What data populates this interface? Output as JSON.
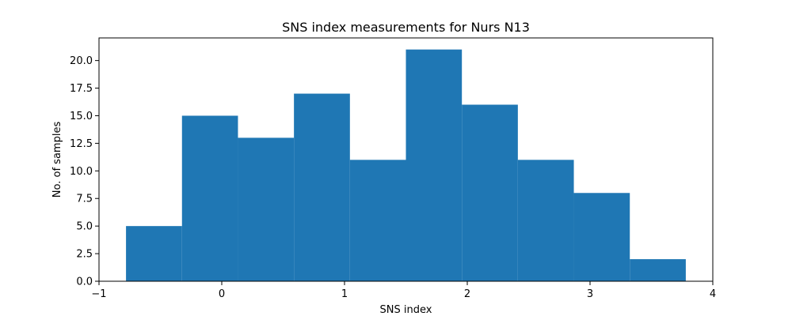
{
  "chart_data": {
    "type": "bar",
    "title": "SNS index measurements for Nurs N13",
    "xlabel": "SNS index",
    "ylabel": "No. of samples",
    "bin_edges": [
      -0.78,
      -0.324,
      0.132,
      0.588,
      1.044,
      1.5,
      1.956,
      2.412,
      2.868,
      3.324,
      3.78
    ],
    "values": [
      5,
      15,
      13,
      17,
      11,
      21,
      16,
      11,
      8,
      2
    ],
    "xlim": [
      -1.0,
      4.0
    ],
    "ylim": [
      0,
      22.05
    ],
    "xticks": [
      -1,
      0,
      1,
      2,
      3,
      4
    ],
    "xtick_labels": [
      "−1",
      "0",
      "1",
      "2",
      "3",
      "4"
    ],
    "yticks": [
      0,
      2.5,
      5,
      7.5,
      10,
      12.5,
      15,
      17.5,
      20
    ],
    "ytick_labels": [
      "0.0",
      "2.5",
      "5.0",
      "7.5",
      "10.0",
      "12.5",
      "15.0",
      "17.5",
      "20.0"
    ],
    "bar_color": "#1f77b4",
    "grid": false,
    "legend": "none"
  }
}
